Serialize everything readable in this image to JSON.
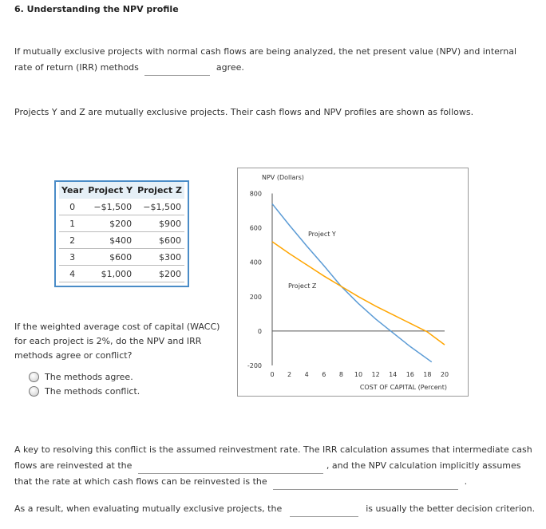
{
  "title": "6. Understanding the NPV profile",
  "q1": {
    "text_a": "If mutually exclusive projects with normal cash flows are being analyzed, the net present value (NPV) and internal",
    "text_b": "rate of return (IRR) methods",
    "text_c": "agree."
  },
  "intro": "Projects Y and Z are mutually exclusive projects. Their cash flows and NPV profiles are shown as follows.",
  "table": {
    "headers": [
      "Year",
      "Project Y",
      "Project Z"
    ],
    "rows": [
      [
        "0",
        "−$1,500",
        "−$1,500"
      ],
      [
        "1",
        "$200",
        "$900"
      ],
      [
        "2",
        "$400",
        "$600"
      ],
      [
        "3",
        "$600",
        "$300"
      ],
      [
        "4",
        "$1,000",
        "$200"
      ]
    ]
  },
  "q2": {
    "line1": "If the weighted average cost of capital (WACC)",
    "line2": "for each project is 2%, do the NPV and IRR",
    "line3": "methods agree or conflict?",
    "options": [
      "The methods agree.",
      "The methods conflict."
    ]
  },
  "q3": {
    "a": "A key to resolving this conflict is the assumed reinvestment rate. The IRR calculation assumes that intermediate cash",
    "b": "flows are reinvested at the",
    "c": ", and the NPV calculation implicitly assumes",
    "d": "that the rate at which cash flows can be reinvested is the",
    "e": "."
  },
  "q4": {
    "a": "As a result, when evaluating mutually exclusive projects, the",
    "b": "is usually the better decision criterion."
  },
  "chart_data": {
    "type": "line",
    "ylabel": "NPV (Dollars)",
    "xlabel": "COST OF CAPITAL (Percent)",
    "xlim": [
      0,
      20
    ],
    "ylim": [
      -200,
      800
    ],
    "xticks": [
      "0",
      "2",
      "4",
      "6",
      "8",
      "10",
      "12",
      "14",
      "16",
      "18",
      "20"
    ],
    "yticks": [
      "800",
      "600",
      "400",
      "200",
      "0",
      "-200"
    ],
    "series": [
      {
        "name": "Project Y",
        "color": "#5b9bd5",
        "x": [
          0,
          2,
          4,
          6,
          8,
          10,
          12,
          14,
          16,
          18.5
        ],
        "y": [
          740,
          615,
          495,
          380,
          260,
          160,
          70,
          -10,
          -90,
          -180
        ]
      },
      {
        "name": "Project Z",
        "color": "#ffa500",
        "x": [
          0,
          2,
          4,
          6,
          8,
          10,
          12,
          14,
          16,
          18,
          20
        ],
        "y": [
          520,
          450,
          385,
          320,
          260,
          200,
          145,
          95,
          45,
          -5,
          -80
        ]
      }
    ]
  }
}
